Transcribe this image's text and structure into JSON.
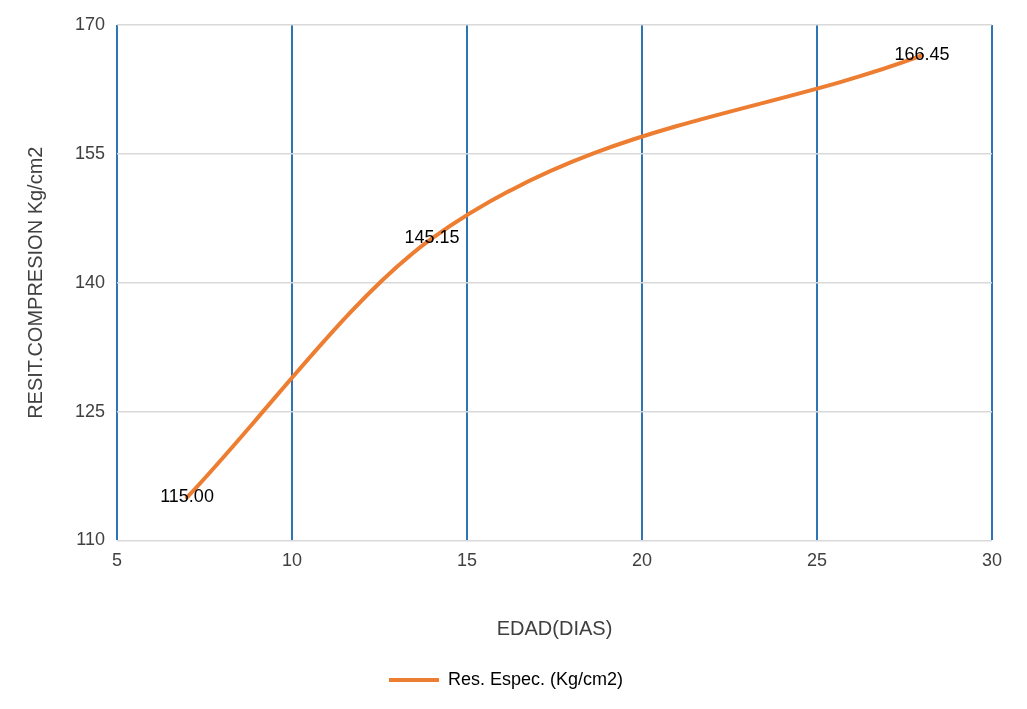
{
  "chart_data": {
    "type": "line",
    "xlabel": "EDAD(DIAS)",
    "ylabel": "RESIT.COMPRESION Kg/cm2",
    "series": [
      {
        "name": "Res. Espec. (Kg/cm2)",
        "color": "#ed7d31",
        "x": [
          7,
          14,
          28
        ],
        "values": [
          115,
          145.15,
          166.45
        ],
        "value_labels": [
          "115.00",
          "145.15",
          "166.45"
        ]
      }
    ],
    "xlim": [
      5,
      30
    ],
    "xticks": [
      5,
      10,
      15,
      20,
      25,
      30
    ],
    "ylim": [
      110,
      170
    ],
    "yticks": [
      110,
      125,
      140,
      155,
      170
    ],
    "grid": true,
    "legend": "bottom",
    "marker": "none",
    "line_style": "solid"
  }
}
